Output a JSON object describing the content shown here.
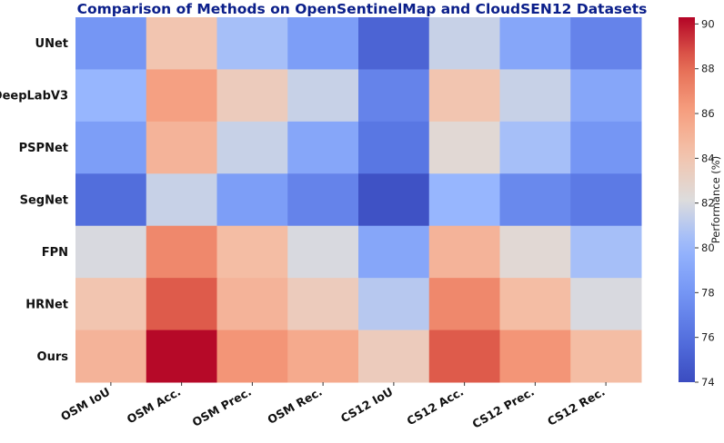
{
  "chart_data": {
    "type": "heatmap",
    "title": "Comparison of Methods on OpenSentinelMap and CloudSEN12 Datasets",
    "rows": [
      "UNet",
      "DeepLabV3",
      "PSPNet",
      "SegNet",
      "FPN",
      "HRNet",
      "Ours"
    ],
    "columns": [
      "OSM IoU",
      "OSM Acc.",
      "OSM Prec.",
      "OSM Rec.",
      "CS12 IoU",
      "CS12 Acc.",
      "CS12 Prec.",
      "CS12 Rec."
    ],
    "values": [
      [
        78.0,
        84.0,
        80.5,
        78.5,
        75.3,
        81.5,
        79.0,
        77.0
      ],
      [
        80.0,
        86.0,
        83.5,
        81.5,
        77.0,
        84.0,
        81.5,
        79.0
      ],
      [
        78.5,
        85.0,
        81.5,
        79.0,
        76.3,
        82.5,
        80.5,
        78.0
      ],
      [
        75.8,
        81.5,
        78.5,
        77.0,
        74.3,
        80.0,
        77.3,
        76.5
      ],
      [
        82.0,
        87.0,
        84.5,
        82.0,
        79.0,
        85.0,
        82.5,
        80.5
      ],
      [
        84.0,
        88.5,
        85.0,
        83.5,
        81.0,
        87.0,
        84.5,
        82.0
      ],
      [
        85.0,
        90.2,
        86.5,
        85.5,
        83.5,
        88.5,
        86.5,
        84.5
      ]
    ],
    "colorbar": {
      "label": "Performance (%)",
      "ticks": [
        "74",
        "76",
        "78",
        "80",
        "82",
        "84",
        "86",
        "88",
        "90"
      ],
      "range": [
        74,
        90.3
      ],
      "colormap": "coolwarm"
    }
  }
}
